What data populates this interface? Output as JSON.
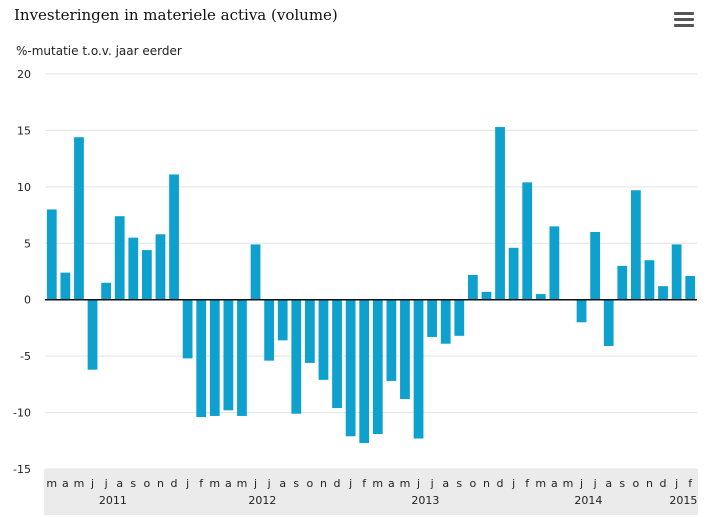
{
  "chart_data": {
    "type": "bar",
    "title": "Investeringen in materiele activa (volume)",
    "ylabel": "%-mutatie t.o.v. jaar eerder",
    "ylim": [
      -15,
      20
    ],
    "yticks": [
      "20",
      "15",
      "10",
      "5",
      "0",
      "-5",
      "-10",
      "-15"
    ],
    "bar_color": "#0fa1ce",
    "month_labels": [
      "m",
      "a",
      "m",
      "j",
      "j",
      "a",
      "s",
      "o",
      "n",
      "d",
      "j",
      "f",
      "m",
      "a",
      "m",
      "j",
      "j",
      "a",
      "s",
      "o",
      "n",
      "d",
      "j",
      "f",
      "m",
      "a",
      "m",
      "j",
      "j",
      "a",
      "s",
      "o",
      "n",
      "d",
      "j",
      "f",
      "m",
      "a",
      "m",
      "j",
      "j",
      "a",
      "s",
      "o",
      "n",
      "d",
      "j",
      "f"
    ],
    "year_labels": [
      {
        "label": "2011",
        "index": 4.5
      },
      {
        "label": "2012",
        "index": 15.5
      },
      {
        "label": "2013",
        "index": 27.5
      },
      {
        "label": "2014",
        "index": 39.5
      },
      {
        "label": "2015",
        "index": 46.5
      }
    ],
    "values": [
      8.0,
      2.4,
      14.4,
      -6.2,
      1.5,
      7.4,
      5.5,
      4.4,
      5.8,
      11.1,
      -5.2,
      -10.4,
      -10.3,
      -9.8,
      -10.3,
      4.9,
      -5.4,
      -3.6,
      -10.1,
      -5.6,
      -7.1,
      -9.6,
      -12.1,
      -12.7,
      -11.9,
      -7.2,
      -8.8,
      -12.3,
      -3.3,
      -3.9,
      -3.2,
      2.2,
      0.7,
      15.3,
      4.6,
      10.4,
      0.5,
      6.5,
      0.0,
      -2.0,
      6.0,
      -4.1,
      3.0,
      9.7,
      3.5,
      1.2,
      4.9,
      2.1
    ]
  }
}
